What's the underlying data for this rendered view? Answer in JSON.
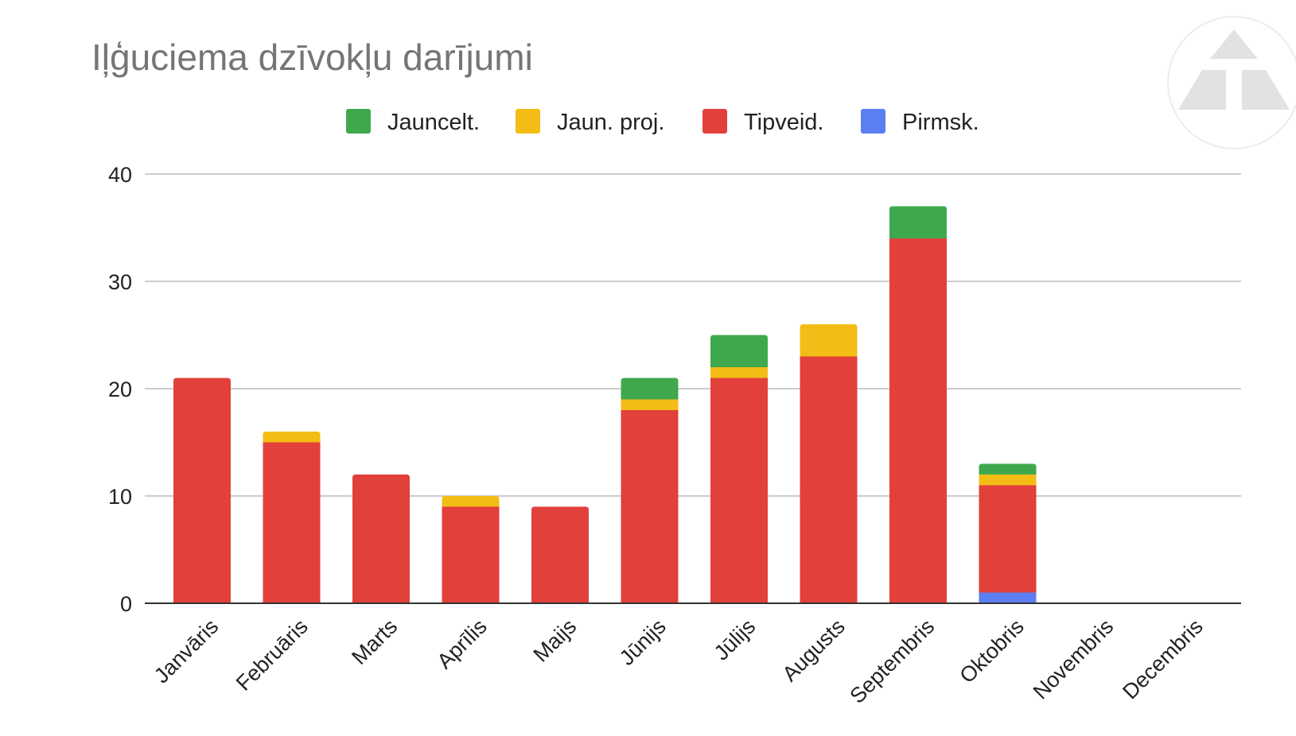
{
  "chart_data": {
    "type": "bar",
    "stacked": true,
    "title": "Iļģuciema dzīvokļu darījumi",
    "xlabel": "",
    "ylabel": "",
    "ylim": [
      0,
      40
    ],
    "yticks": [
      0,
      10,
      20,
      30,
      40
    ],
    "grid": true,
    "legend_position": "top",
    "categories": [
      "Janvāris",
      "Februāris",
      "Marts",
      "Aprīlis",
      "Maijs",
      "Jūnijs",
      "Jūlijs",
      "Augusts",
      "Septembris",
      "Oktobris",
      "Novembris",
      "Decembris"
    ],
    "series": [
      {
        "name": "Pirmsk.",
        "color": "#5b7ff1",
        "values": [
          0,
          0,
          0,
          0,
          0,
          0,
          0,
          0,
          0,
          1,
          0,
          0
        ]
      },
      {
        "name": "Tipveid.",
        "color": "#e2403b",
        "values": [
          21,
          15,
          12,
          9,
          9,
          18,
          21,
          23,
          34,
          10,
          0,
          0
        ]
      },
      {
        "name": "Jaun. proj.",
        "color": "#f3bd16",
        "values": [
          0,
          1,
          0,
          1,
          0,
          1,
          1,
          3,
          0,
          1,
          0,
          0
        ]
      },
      {
        "name": "Jauncelt.",
        "color": "#3fa84d",
        "values": [
          0,
          0,
          0,
          0,
          0,
          2,
          3,
          0,
          3,
          1,
          0,
          0
        ]
      }
    ],
    "legend_order": [
      "Jauncelt.",
      "Jaun. proj.",
      "Tipveid.",
      "Pirmsk."
    ],
    "logo": "triangle-logo-icon"
  }
}
